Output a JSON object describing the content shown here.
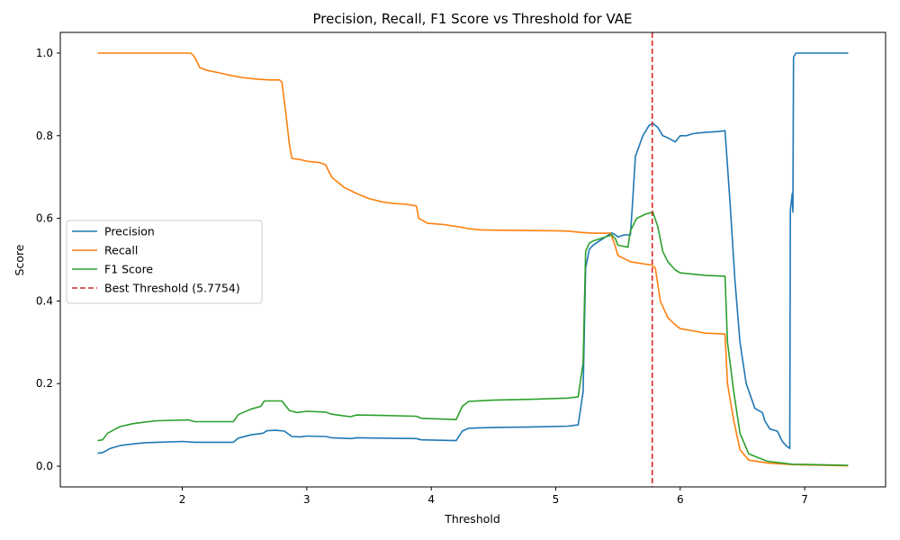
{
  "chart_data": {
    "type": "line",
    "title": "Precision, Recall, F1 Score vs Threshold for VAE",
    "xlabel": "Threshold",
    "ylabel": "Score",
    "xlim": [
      1.02,
      7.65
    ],
    "ylim": [
      -0.05,
      1.05
    ],
    "x_ticks": [
      2,
      3,
      4,
      5,
      6,
      7
    ],
    "y_ticks": [
      0.0,
      0.2,
      0.4,
      0.6,
      0.8,
      1.0
    ],
    "x_tick_labels": [
      "2",
      "3",
      "4",
      "5",
      "6",
      "7"
    ],
    "y_tick_labels": [
      "0.0",
      "0.2",
      "0.4",
      "0.6",
      "0.8",
      "1.0"
    ],
    "grid": false,
    "legend_position": "center-left",
    "series": [
      {
        "name": "Precision",
        "color": "#1f77b4",
        "points": [
          [
            1.32,
            0.032
          ],
          [
            1.36,
            0.033
          ],
          [
            1.42,
            0.043
          ],
          [
            1.5,
            0.05
          ],
          [
            1.6,
            0.054
          ],
          [
            1.7,
            0.057
          ],
          [
            1.8,
            0.058
          ],
          [
            2.0,
            0.06
          ],
          [
            2.1,
            0.058
          ],
          [
            2.3,
            0.058
          ],
          [
            2.41,
            0.058
          ],
          [
            2.45,
            0.068
          ],
          [
            2.55,
            0.076
          ],
          [
            2.65,
            0.08
          ],
          [
            2.68,
            0.086
          ],
          [
            2.75,
            0.087
          ],
          [
            2.82,
            0.085
          ],
          [
            2.88,
            0.072
          ],
          [
            2.95,
            0.071
          ],
          [
            3.0,
            0.073
          ],
          [
            3.15,
            0.072
          ],
          [
            3.2,
            0.069
          ],
          [
            3.35,
            0.067
          ],
          [
            3.4,
            0.069
          ],
          [
            3.6,
            0.068
          ],
          [
            3.88,
            0.067
          ],
          [
            3.92,
            0.064
          ],
          [
            4.2,
            0.062
          ],
          [
            4.25,
            0.085
          ],
          [
            4.3,
            0.092
          ],
          [
            4.5,
            0.094
          ],
          [
            4.8,
            0.095
          ],
          [
            5.1,
            0.097
          ],
          [
            5.18,
            0.1
          ],
          [
            5.22,
            0.18
          ],
          [
            5.24,
            0.48
          ],
          [
            5.27,
            0.525
          ],
          [
            5.3,
            0.535
          ],
          [
            5.4,
            0.555
          ],
          [
            5.45,
            0.565
          ],
          [
            5.48,
            0.56
          ],
          [
            5.5,
            0.555
          ],
          [
            5.55,
            0.56
          ],
          [
            5.6,
            0.56
          ],
          [
            5.62,
            0.65
          ],
          [
            5.64,
            0.75
          ],
          [
            5.7,
            0.8
          ],
          [
            5.75,
            0.825
          ],
          [
            5.78,
            0.83
          ],
          [
            5.82,
            0.82
          ],
          [
            5.86,
            0.8
          ],
          [
            5.9,
            0.795
          ],
          [
            5.96,
            0.785
          ],
          [
            6.0,
            0.8
          ],
          [
            6.05,
            0.8
          ],
          [
            6.1,
            0.805
          ],
          [
            6.2,
            0.808
          ],
          [
            6.3,
            0.81
          ],
          [
            6.36,
            0.812
          ],
          [
            6.4,
            0.64
          ],
          [
            6.44,
            0.45
          ],
          [
            6.48,
            0.3
          ],
          [
            6.53,
            0.2
          ],
          [
            6.6,
            0.14
          ],
          [
            6.66,
            0.13
          ],
          [
            6.68,
            0.11
          ],
          [
            6.72,
            0.09
          ],
          [
            6.78,
            0.085
          ],
          [
            6.82,
            0.06
          ],
          [
            6.85,
            0.05
          ],
          [
            6.88,
            0.043
          ],
          [
            6.885,
            0.62
          ],
          [
            6.9,
            0.66
          ],
          [
            6.905,
            0.615
          ],
          [
            6.91,
            0.99
          ],
          [
            6.93,
            1.0
          ],
          [
            7.35,
            1.0
          ]
        ]
      },
      {
        "name": "Recall",
        "color": "#ff7f0e",
        "points": [
          [
            1.32,
            1.0
          ],
          [
            2.07,
            1.0
          ],
          [
            2.1,
            0.99
          ],
          [
            2.14,
            0.965
          ],
          [
            2.2,
            0.958
          ],
          [
            2.3,
            0.952
          ],
          [
            2.4,
            0.945
          ],
          [
            2.5,
            0.94
          ],
          [
            2.6,
            0.937
          ],
          [
            2.7,
            0.935
          ],
          [
            2.78,
            0.935
          ],
          [
            2.8,
            0.93
          ],
          [
            2.83,
            0.86
          ],
          [
            2.86,
            0.78
          ],
          [
            2.88,
            0.745
          ],
          [
            2.95,
            0.742
          ],
          [
            3.0,
            0.738
          ],
          [
            3.1,
            0.735
          ],
          [
            3.15,
            0.73
          ],
          [
            3.2,
            0.7
          ],
          [
            3.3,
            0.675
          ],
          [
            3.4,
            0.66
          ],
          [
            3.5,
            0.648
          ],
          [
            3.6,
            0.64
          ],
          [
            3.7,
            0.636
          ],
          [
            3.8,
            0.634
          ],
          [
            3.88,
            0.63
          ],
          [
            3.9,
            0.6
          ],
          [
            3.97,
            0.588
          ],
          [
            4.1,
            0.585
          ],
          [
            4.25,
            0.578
          ],
          [
            4.3,
            0.575
          ],
          [
            4.4,
            0.572
          ],
          [
            4.6,
            0.571
          ],
          [
            5.0,
            0.57
          ],
          [
            5.1,
            0.569
          ],
          [
            5.2,
            0.566
          ],
          [
            5.3,
            0.564
          ],
          [
            5.44,
            0.564
          ],
          [
            5.47,
            0.54
          ],
          [
            5.5,
            0.51
          ],
          [
            5.6,
            0.495
          ],
          [
            5.7,
            0.49
          ],
          [
            5.77,
            0.487
          ],
          [
            5.8,
            0.48
          ],
          [
            5.84,
            0.4
          ],
          [
            5.9,
            0.36
          ],
          [
            5.95,
            0.345
          ],
          [
            6.0,
            0.333
          ],
          [
            6.1,
            0.328
          ],
          [
            6.2,
            0.322
          ],
          [
            6.36,
            0.32
          ],
          [
            6.38,
            0.2
          ],
          [
            6.43,
            0.11
          ],
          [
            6.48,
            0.04
          ],
          [
            6.55,
            0.015
          ],
          [
            6.7,
            0.008
          ],
          [
            6.9,
            0.004
          ],
          [
            7.35,
            0.001
          ]
        ]
      },
      {
        "name": "F1 Score",
        "color": "#2ca02c",
        "points": [
          [
            1.32,
            0.062
          ],
          [
            1.36,
            0.064
          ],
          [
            1.4,
            0.08
          ],
          [
            1.5,
            0.096
          ],
          [
            1.6,
            0.103
          ],
          [
            1.7,
            0.107
          ],
          [
            1.8,
            0.11
          ],
          [
            2.05,
            0.112
          ],
          [
            2.1,
            0.108
          ],
          [
            2.3,
            0.108
          ],
          [
            2.41,
            0.108
          ],
          [
            2.45,
            0.125
          ],
          [
            2.55,
            0.138
          ],
          [
            2.63,
            0.145
          ],
          [
            2.66,
            0.158
          ],
          [
            2.8,
            0.158
          ],
          [
            2.86,
            0.135
          ],
          [
            2.92,
            0.13
          ],
          [
            3.0,
            0.133
          ],
          [
            3.15,
            0.131
          ],
          [
            3.2,
            0.126
          ],
          [
            3.35,
            0.12
          ],
          [
            3.4,
            0.124
          ],
          [
            3.6,
            0.123
          ],
          [
            3.88,
            0.121
          ],
          [
            3.92,
            0.116
          ],
          [
            4.2,
            0.113
          ],
          [
            4.25,
            0.145
          ],
          [
            4.3,
            0.157
          ],
          [
            4.5,
            0.16
          ],
          [
            4.8,
            0.162
          ],
          [
            5.1,
            0.165
          ],
          [
            5.18,
            0.168
          ],
          [
            5.22,
            0.25
          ],
          [
            5.24,
            0.52
          ],
          [
            5.27,
            0.54
          ],
          [
            5.3,
            0.545
          ],
          [
            5.4,
            0.555
          ],
          [
            5.45,
            0.56
          ],
          [
            5.48,
            0.55
          ],
          [
            5.5,
            0.535
          ],
          [
            5.58,
            0.53
          ],
          [
            5.6,
            0.57
          ],
          [
            5.65,
            0.6
          ],
          [
            5.72,
            0.61
          ],
          [
            5.78,
            0.615
          ],
          [
            5.82,
            0.58
          ],
          [
            5.86,
            0.52
          ],
          [
            5.9,
            0.495
          ],
          [
            5.96,
            0.475
          ],
          [
            6.0,
            0.468
          ],
          [
            6.1,
            0.465
          ],
          [
            6.2,
            0.462
          ],
          [
            6.36,
            0.46
          ],
          [
            6.38,
            0.3
          ],
          [
            6.43,
            0.18
          ],
          [
            6.48,
            0.08
          ],
          [
            6.55,
            0.03
          ],
          [
            6.7,
            0.012
          ],
          [
            6.9,
            0.005
          ],
          [
            7.35,
            0.002
          ]
        ]
      },
      {
        "name": "Best Threshold (5.7754)",
        "color": "#d62728",
        "style": "dashed",
        "vline_x": 5.7754
      }
    ]
  }
}
